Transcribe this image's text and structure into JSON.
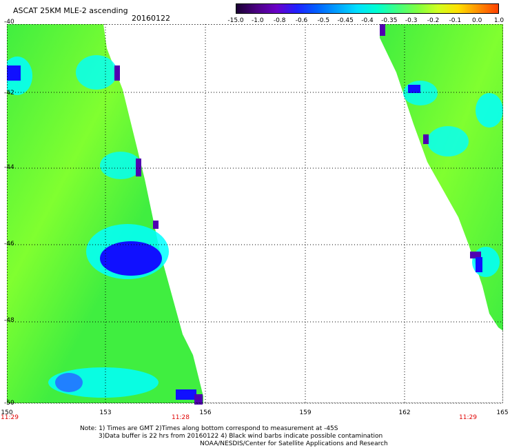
{
  "title": "ASCAT 25KM MLE-2 ascending",
  "date": "20160122",
  "colorbar": {
    "labels": [
      "-15.0",
      "-1.0",
      "-0.8",
      "-0.6",
      "-0.5",
      "-0.45",
      "-0.4",
      "-0.35",
      "-0.3",
      "-0.2",
      "-0.1",
      "0.0",
      "1.0"
    ],
    "colors": [
      "#1a0033",
      "#4b0082",
      "#6a00c8",
      "#2020ff",
      "#0060ff",
      "#00a0ff",
      "#00e0ff",
      "#00ffd0",
      "#40ff80",
      "#80ff40",
      "#d0ff20",
      "#ffe000",
      "#ff9000",
      "#ff4000"
    ]
  },
  "axes": {
    "lon_ticks": [
      "150",
      "153",
      "156",
      "159",
      "162",
      "165"
    ],
    "lat_ticks": [
      "-40",
      "-42",
      "-44",
      "-46",
      "-48",
      "-50"
    ]
  },
  "times": {
    "left": "11:29",
    "mid": "11:28",
    "right": "11:29"
  },
  "notes": [
    "Note: 1) Times are GMT 2)Times along bottom correspond to measurement at -45S",
    "3)Data buffer is 22 hrs from 20160122 4) Black wind barbs indicate possible contamination",
    "NOAA/NESDIS/Center for Satellite Applications and Research"
  ],
  "data_colors": {
    "green": "#40ee40",
    "lime": "#80ff30",
    "cyan": "#00ffff",
    "blue": "#1010ff",
    "purple": "#5000b0"
  }
}
